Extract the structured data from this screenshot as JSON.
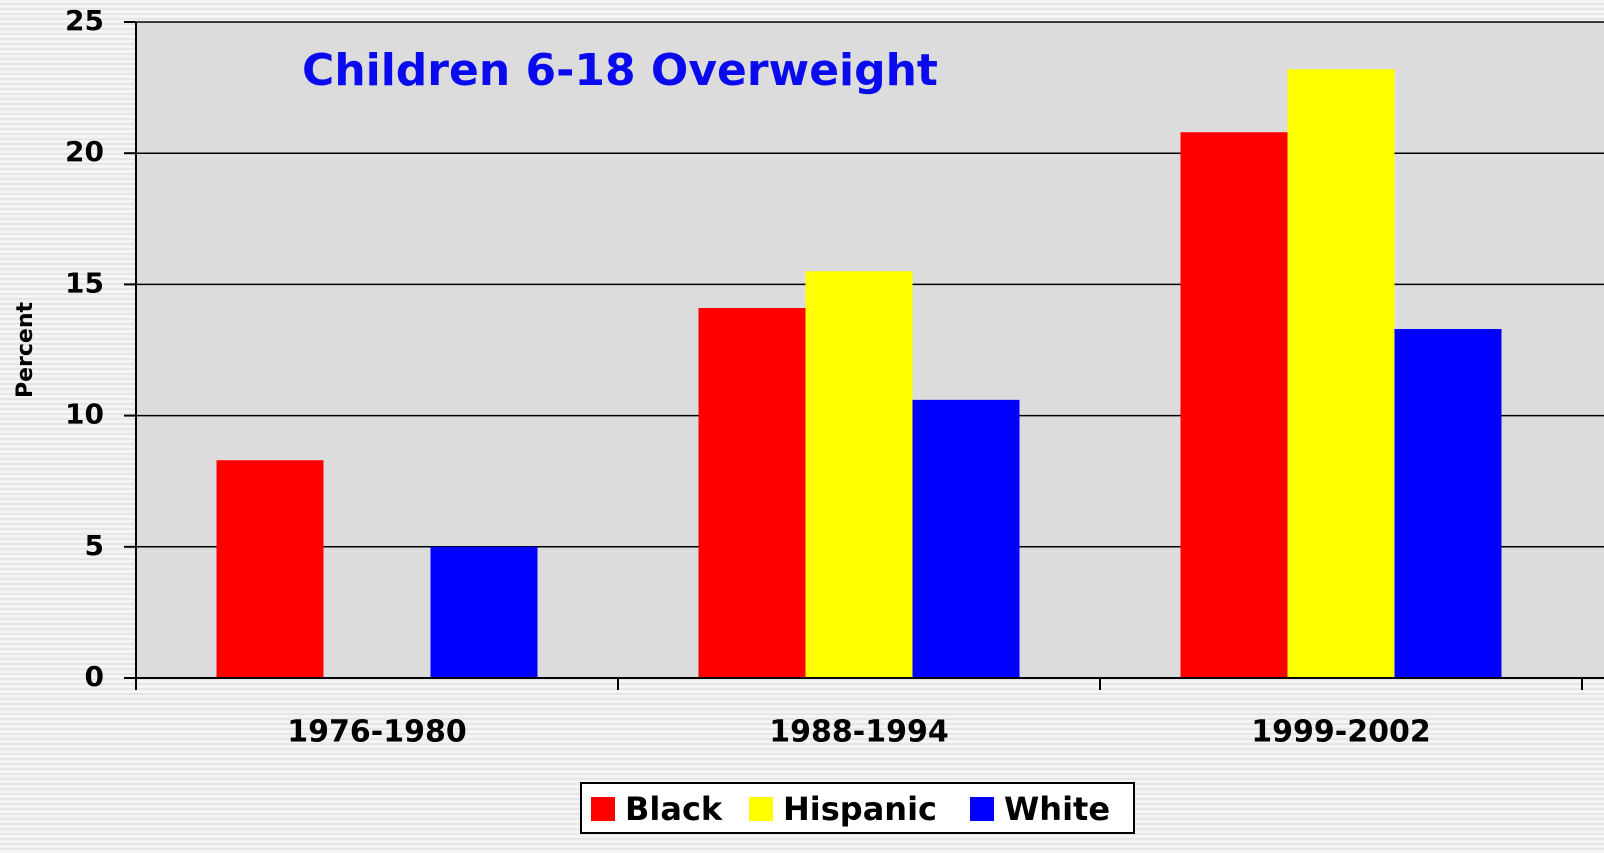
{
  "chart_data": {
    "type": "bar",
    "title": "Children 6-18 Overweight",
    "y_label": "Percent",
    "categories": [
      "1976-1980",
      "1988-1994",
      "1999-2002"
    ],
    "series": [
      {
        "name": "Black",
        "color": "#ff0000",
        "values": [
          8.3,
          14.1,
          20.8
        ]
      },
      {
        "name": "Hispanic",
        "color": "#ffff00",
        "values": [
          null,
          15.5,
          23.2
        ]
      },
      {
        "name": "White",
        "color": "#0000ff",
        "values": [
          5.0,
          10.6,
          13.3
        ]
      }
    ],
    "ylim": [
      0,
      25
    ],
    "yticks": [
      0,
      5,
      10,
      15,
      20,
      25
    ],
    "grid": true,
    "legend": "bottom"
  }
}
